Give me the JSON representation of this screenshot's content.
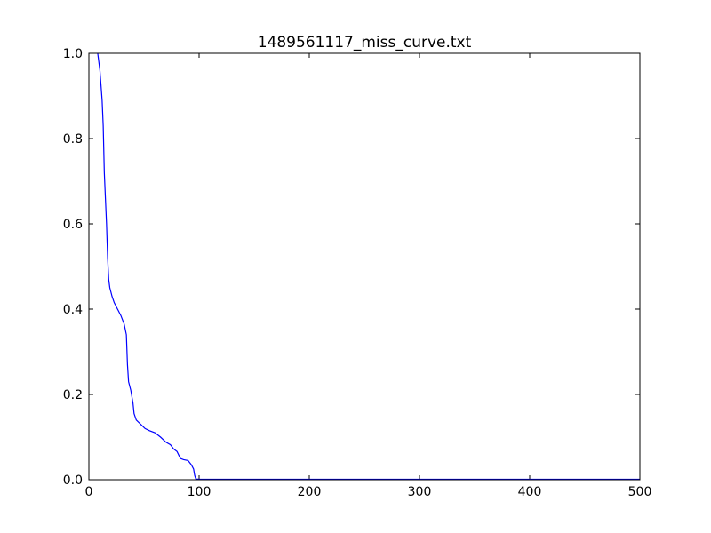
{
  "chart_data": {
    "type": "line",
    "title": "1489561117_miss_curve.txt",
    "xlabel": "",
    "ylabel": "",
    "xlim": [
      0,
      500
    ],
    "ylim": [
      0,
      1.0
    ],
    "grid": false,
    "x_ticks": [
      0,
      100,
      200,
      300,
      400,
      500
    ],
    "x_tick_labels": [
      "0",
      "100",
      "200",
      "300",
      "400",
      "500"
    ],
    "y_ticks": [
      0,
      0.2,
      0.4,
      0.6,
      0.8,
      1.0
    ],
    "y_tick_labels": [
      "0.0",
      "0.2",
      "0.4",
      "0.6",
      "0.8",
      "1.0"
    ],
    "series": [
      {
        "color": "#0000ff",
        "points": [
          [
            8,
            1.0
          ],
          [
            10,
            0.96
          ],
          [
            12,
            0.89
          ],
          [
            13,
            0.83
          ],
          [
            14,
            0.72
          ],
          [
            15,
            0.66
          ],
          [
            16,
            0.6
          ],
          [
            17,
            0.52
          ],
          [
            18,
            0.47
          ],
          [
            19,
            0.45
          ],
          [
            21,
            0.43
          ],
          [
            23,
            0.415
          ],
          [
            26,
            0.4
          ],
          [
            29,
            0.385
          ],
          [
            32,
            0.365
          ],
          [
            34,
            0.34
          ],
          [
            35,
            0.27
          ],
          [
            36,
            0.23
          ],
          [
            38,
            0.21
          ],
          [
            40,
            0.18
          ],
          [
            41,
            0.155
          ],
          [
            43,
            0.14
          ],
          [
            47,
            0.13
          ],
          [
            51,
            0.12
          ],
          [
            55,
            0.115
          ],
          [
            60,
            0.11
          ],
          [
            65,
            0.1
          ],
          [
            70,
            0.088
          ],
          [
            74,
            0.082
          ],
          [
            77,
            0.072
          ],
          [
            80,
            0.066
          ],
          [
            83,
            0.05
          ],
          [
            86,
            0.047
          ],
          [
            90,
            0.045
          ],
          [
            93,
            0.035
          ],
          [
            95,
            0.025
          ],
          [
            96,
            0.01
          ],
          [
            97,
            0.002
          ],
          [
            100,
            0.001
          ],
          [
            200,
            0.001
          ],
          [
            300,
            0.001
          ],
          [
            400,
            0.001
          ],
          [
            500,
            0.001
          ]
        ]
      }
    ]
  }
}
